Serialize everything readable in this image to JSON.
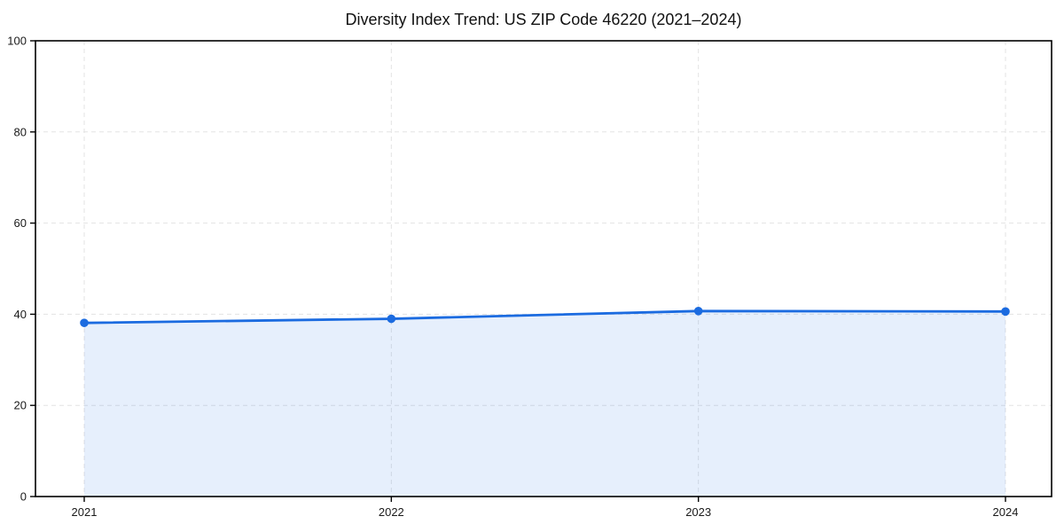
{
  "page": {
    "background": "#ffffff"
  },
  "chart_data": {
    "type": "line",
    "title": "Diversity Index Trend: US ZIP Code 46220 (2021–2024)",
    "categories": [
      "2021",
      "2022",
      "2023",
      "2024"
    ],
    "series": [
      {
        "name": "Diversity Index",
        "values": [
          38.1,
          39.0,
          40.7,
          40.6
        ]
      }
    ],
    "xlabel": "",
    "ylabel": "",
    "ylim": [
      0,
      100
    ],
    "yticks": [
      0,
      20,
      40,
      60,
      80,
      100
    ],
    "grid": "dashed",
    "legend_position": "none",
    "area_fill": true,
    "colors": {
      "line": "#1b6be0",
      "marker": "#1b6be0",
      "fill": "#1b6be0",
      "fill_opacity": 0.11,
      "grid": "#e3e3e3",
      "spine": "#000000",
      "tick_label": "#1a1a1a",
      "title": "#111111"
    }
  }
}
